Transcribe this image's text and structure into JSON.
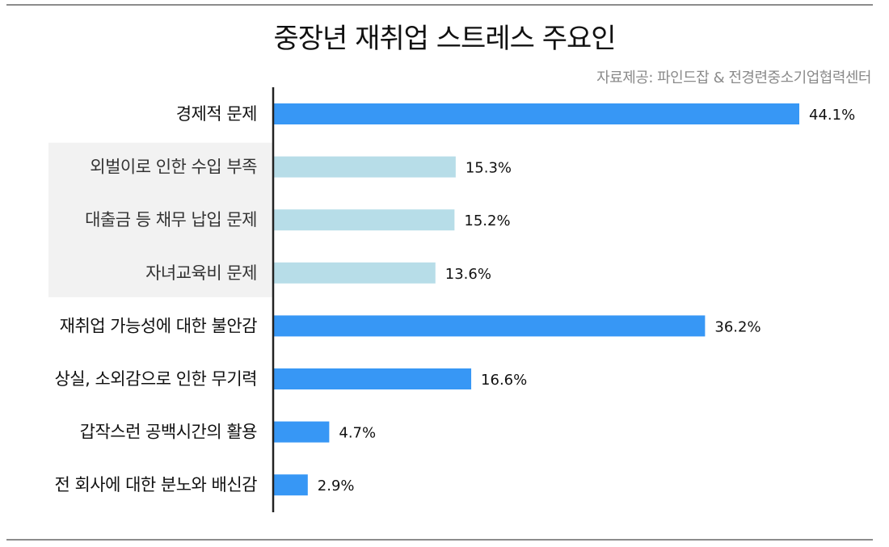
{
  "title": "중장년 재취업 스트레스 주요인",
  "source": "자료제공: 파인드잡 & 전경련중소기업협력센터",
  "colors": {
    "primary_bar": "#3797f5",
    "secondary_bar": "#b7dde8",
    "sub_group_background": "#f2f2f2",
    "axis": "#222222"
  },
  "chart_data": {
    "type": "bar",
    "orientation": "horizontal",
    "title": "중장년 재취업 스트레스 주요인",
    "categories": [
      "경제적 문제",
      "외벌이로 인한 수입 부족",
      "대출금 등 채무 납입 문제",
      "자녀교육비 문제",
      "재취업 가능성에 대한 불안감",
      "상실, 소외감으로 인한 무기력",
      "갑작스런 공백시간의 활용",
      "전 회사에 대한 분노와 배신감"
    ],
    "values": [
      44.1,
      15.3,
      15.2,
      13.6,
      36.2,
      16.6,
      4.7,
      2.9
    ],
    "value_labels": [
      "44.1%",
      "15.3%",
      "15.2%",
      "13.6%",
      "36.2%",
      "16.6%",
      "4.7%",
      "2.9%"
    ],
    "sub_items": [
      false,
      true,
      true,
      true,
      false,
      false,
      false,
      false
    ],
    "unit": "%",
    "xlim": [
      0,
      50
    ],
    "grid": false,
    "legend": "none"
  }
}
